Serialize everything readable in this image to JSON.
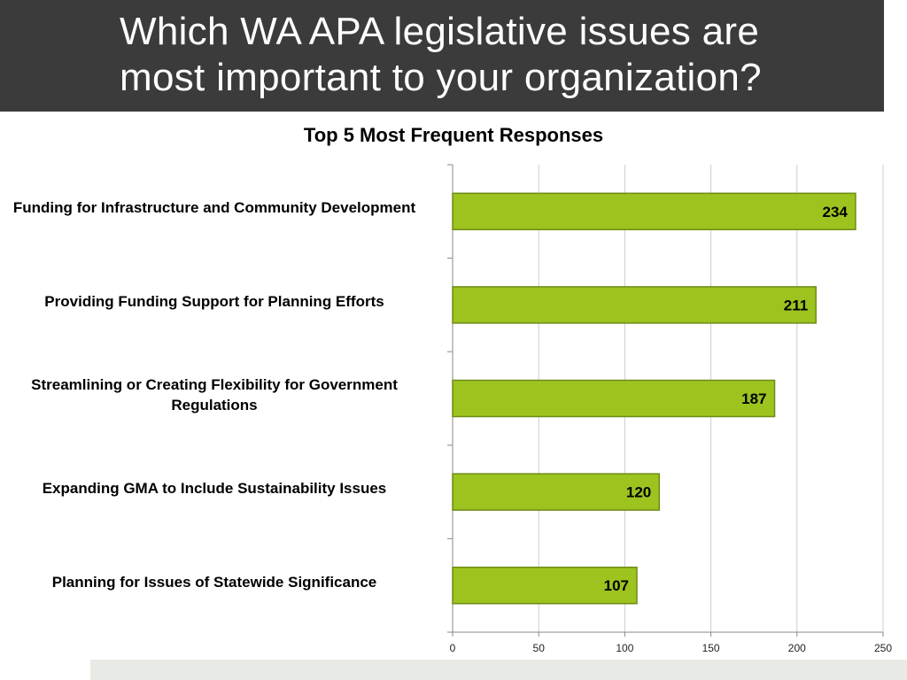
{
  "slide": {
    "title": "Which WA APA legislative issues are\nmost important to your organization?"
  },
  "colors": {
    "title_band": "#3b3b3b",
    "bar_fill": "#9dc31f",
    "bar_stroke": "#6f8b15",
    "grid": "#cccccc",
    "footer": "#e8eae5"
  },
  "chart_data": {
    "type": "bar",
    "orientation": "horizontal",
    "title": "Top 5 Most Frequent Responses",
    "categories": [
      "Funding for Infrastructure and Community Development",
      "Providing Funding Support for Planning Efforts",
      "Streamlining or Creating Flexibility for Government Regulations",
      "Expanding GMA to Include Sustainability Issues",
      "Planning for Issues of Statewide Significance"
    ],
    "values": [
      234,
      211,
      187,
      120,
      107
    ],
    "data_labels": [
      "234",
      "211",
      "187",
      "120",
      "107"
    ],
    "xlim": [
      0,
      250
    ],
    "x_ticks": [
      "0",
      "50",
      "100",
      "150",
      "200",
      "250"
    ],
    "grid": true,
    "legend": "none"
  }
}
